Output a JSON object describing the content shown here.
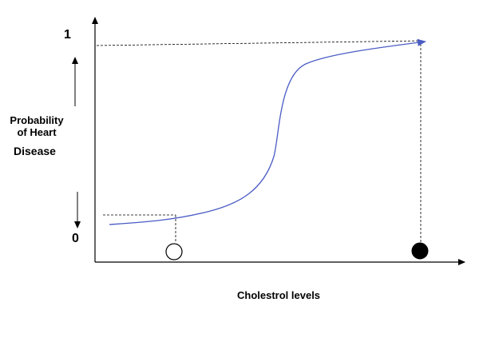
{
  "diagram": {
    "y_top_label": "1",
    "y_bottom_label": "0",
    "y_axis_label_line1": "Probability",
    "y_axis_label_line2": "of Heart",
    "y_axis_label_line3": "Disease",
    "x_axis_label": "Cholestrol levels",
    "curve_type": "sigmoid",
    "markers": [
      {
        "name": "low-cholesterol-marker",
        "fill": "hollow",
        "probability_level": "low"
      },
      {
        "name": "high-cholesterol-marker",
        "fill": "filled",
        "probability_level": "1"
      }
    ],
    "colors": {
      "curve": "#4a5bc4",
      "axes": "#000000",
      "guides": "#000000"
    }
  }
}
